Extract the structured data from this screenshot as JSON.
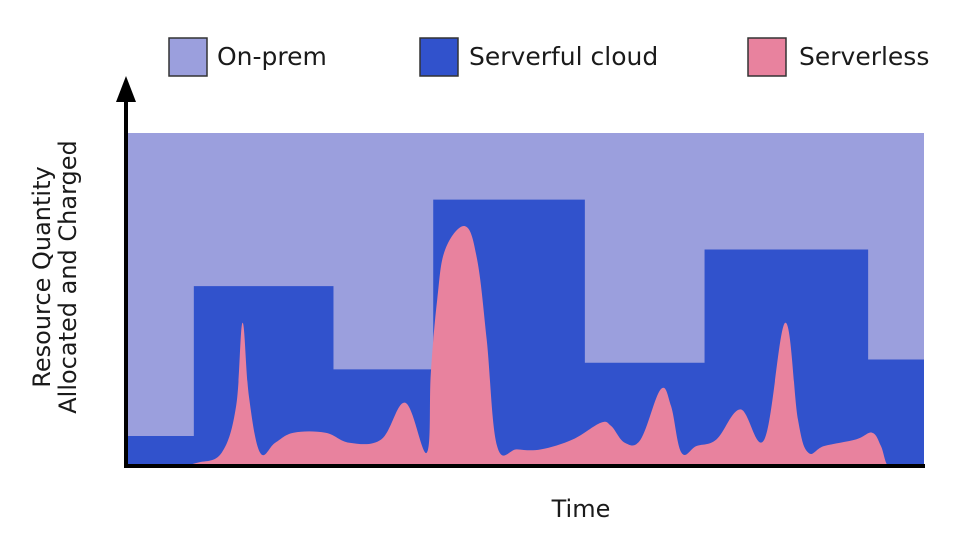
{
  "chart_data": {
    "type": "area",
    "title": "",
    "xlabel": "Time",
    "ylabel_lines": [
      "Resource Quantity",
      "Allocated and Charged"
    ],
    "xlim": [
      0,
      100
    ],
    "ylim": [
      0,
      100
    ],
    "legend_placement": "top",
    "grid": false,
    "series": [
      {
        "name": "On-prem",
        "color": "#9b9fdd",
        "kind": "step",
        "x": [
          0,
          100
        ],
        "y": [
          100,
          100
        ]
      },
      {
        "name": "Serverful cloud",
        "color": "#3152cc",
        "kind": "step",
        "x": [
          0,
          8.5,
          26,
          38.5,
          57.5,
          72.5,
          93,
          100
        ],
        "y": [
          9,
          54,
          29,
          80,
          31,
          65,
          32,
          32
        ]
      },
      {
        "name": "Serverless",
        "color": "#e8829e",
        "kind": "smooth",
        "x": [
          0,
          6,
          9,
          12,
          13.8,
          14.6,
          15.4,
          16.8,
          18.7,
          21,
          25,
          28,
          32,
          35,
          37.7,
          38.2,
          39,
          40,
          42.5,
          44,
          45.2,
          46.5,
          49,
          52,
          56,
          59.5,
          60.8,
          62.5,
          64.5,
          67,
          68.3,
          69.6,
          71.5,
          74,
          77,
          80,
          82.6,
          84.2,
          85.5,
          87.5,
          91.5,
          93.5,
          94.6,
          95.5,
          97,
          100
        ],
        "y": [
          0,
          0,
          1,
          4,
          18,
          43,
          21,
          4,
          7,
          10,
          10,
          7,
          8,
          19,
          4,
          28,
          50,
          65,
          72,
          62,
          38,
          6,
          5,
          5,
          8,
          13,
          12,
          7,
          8,
          23,
          18,
          4,
          6,
          8,
          17,
          8,
          43,
          14,
          4,
          6,
          8,
          10,
          6,
          0,
          0,
          0
        ]
      }
    ],
    "legend": [
      {
        "label": "On-prem",
        "color": "#9b9fdd"
      },
      {
        "label": "Serverful cloud",
        "color": "#3152cc"
      },
      {
        "label": "Serverless",
        "color": "#e8829e"
      }
    ]
  }
}
